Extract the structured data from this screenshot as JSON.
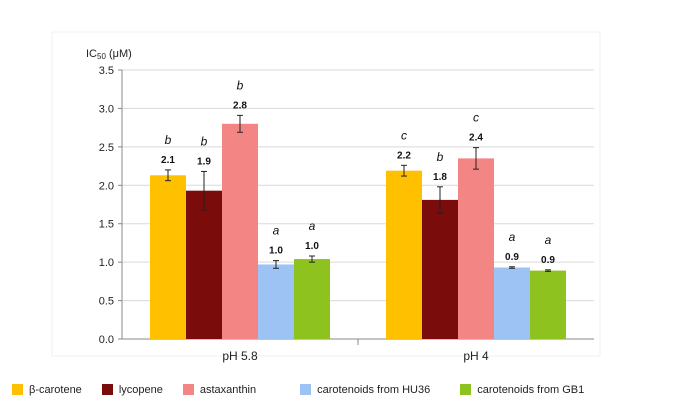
{
  "chart_data": {
    "type": "bar",
    "title": "",
    "ylabel_prefix": "IC",
    "ylabel_sub": "50",
    "ylabel_suffix": " (μM)",
    "xlabel": "",
    "ylim": [
      0,
      3.5
    ],
    "yticks": [
      "0.0",
      "0.5",
      "1.0",
      "1.5",
      "2.0",
      "2.5",
      "3.0",
      "3.5"
    ],
    "categories": [
      "pH 5.8",
      "pH 4"
    ],
    "legend_position": "bottom",
    "series": [
      {
        "name": "β-carotene",
        "color": "#FFC000",
        "values": [
          2.13,
          2.19
        ],
        "errors": [
          0.07,
          0.07
        ],
        "value_labels": [
          "2.1",
          "2.2"
        ],
        "letters": [
          "b",
          "c"
        ]
      },
      {
        "name": "lycopene",
        "color": "#7B0C0C",
        "values": [
          1.93,
          1.81
        ],
        "errors": [
          0.25,
          0.17
        ],
        "value_labels": [
          "1.9",
          "1.8"
        ],
        "letters": [
          "b",
          "b"
        ]
      },
      {
        "name": "astaxanthin",
        "color": "#F48585",
        "values": [
          2.8,
          2.35
        ],
        "errors": [
          0.11,
          0.14
        ],
        "value_labels": [
          "2.8",
          "2.4"
        ],
        "letters": [
          "b",
          "c"
        ]
      },
      {
        "name": "carotenoids from HU36",
        "color": "#9DC3F5",
        "values": [
          0.97,
          0.93
        ],
        "errors": [
          0.05,
          0.01
        ],
        "value_labels": [
          "1.0",
          "0.9"
        ],
        "letters": [
          "a",
          "a"
        ]
      },
      {
        "name": "carotenoids from GB1",
        "color": "#8DC21F",
        "values": [
          1.04,
          0.89
        ],
        "errors": [
          0.04,
          0.01
        ],
        "value_labels": [
          "1.0",
          "0.9"
        ],
        "letters": [
          "a",
          "a"
        ]
      }
    ]
  }
}
